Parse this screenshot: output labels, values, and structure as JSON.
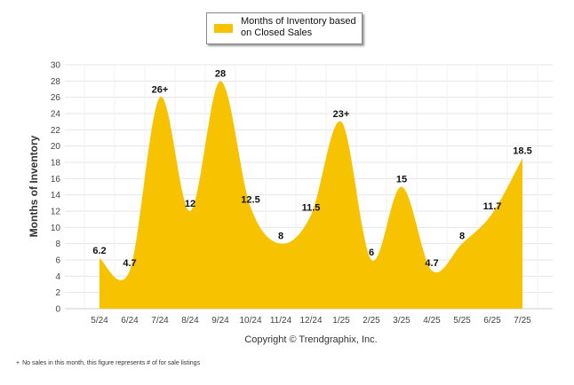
{
  "legend": {
    "label": "Months of Inventory based on Closed Sales"
  },
  "copyright": "Copyright © Trendgraphix, Inc.",
  "footnote": {
    "symbol": "+",
    "text": "No sales in this month, this figure represents # of for sale listings"
  },
  "colors": {
    "area": "#F7C300",
    "grid": "#e6e6e6",
    "axis": "#cccccc"
  },
  "chart_data": {
    "type": "area",
    "title": "",
    "xlabel": "",
    "ylabel": "Months of Inventory",
    "ylim": [
      0,
      30
    ],
    "yticks": [
      0,
      2,
      4,
      6,
      8,
      10,
      12,
      14,
      16,
      18,
      20,
      22,
      24,
      26,
      28,
      30
    ],
    "categories": [
      "5/24",
      "6/24",
      "7/24",
      "8/24",
      "9/24",
      "10/24",
      "11/24",
      "12/24",
      "1/25",
      "2/25",
      "3/25",
      "4/25",
      "5/25",
      "6/25",
      "7/25"
    ],
    "series": [
      {
        "name": "Months of Inventory based on Closed Sales",
        "values": [
          6.2,
          4.7,
          26,
          12,
          28,
          12.5,
          8,
          11.5,
          23,
          6,
          15,
          4.7,
          8,
          11.7,
          18.5
        ],
        "labels": [
          "6.2",
          "4.7",
          "26+",
          "12",
          "28",
          "12.5",
          "8",
          "11.5",
          "23+",
          "6",
          "15",
          "4.7",
          "8",
          "11.7",
          "18.5"
        ]
      }
    ],
    "grid": true,
    "legend_position": "top-center"
  }
}
